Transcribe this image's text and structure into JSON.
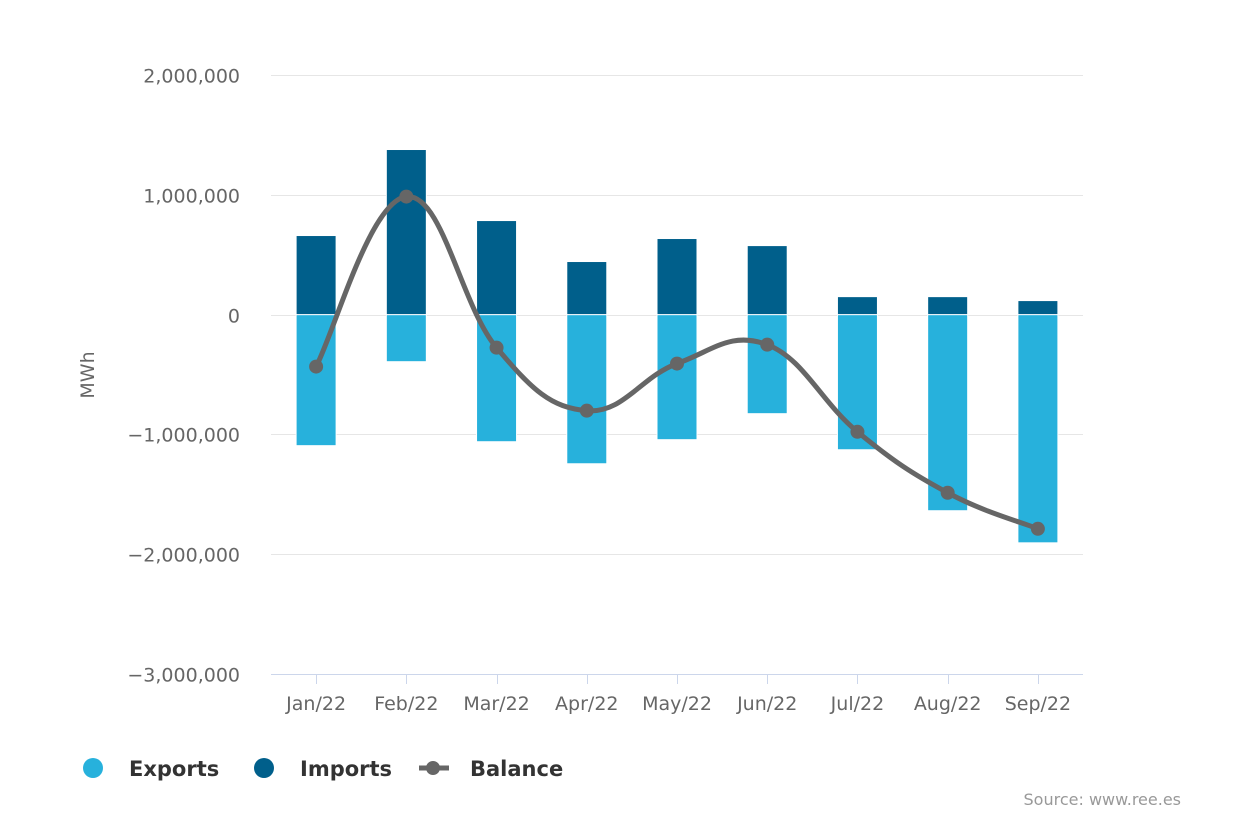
{
  "chart_data": {
    "type": "bar",
    "title": "",
    "xlabel": "",
    "ylabel": "MWh",
    "ylim": [
      -3000000,
      2000000
    ],
    "yticks": [
      2000000,
      1000000,
      0,
      -1000000,
      -2000000,
      -3000000
    ],
    "ytick_labels": [
      "2,000,000",
      "1,000,000",
      "0",
      "−1,000,000",
      "−2,000,000",
      "−3,000,000"
    ],
    "grid": true,
    "categories": [
      "Jan/22",
      "Feb/22",
      "Mar/22",
      "Apr/22",
      "May/22",
      "Jun/22",
      "Jul/22",
      "Aug/22",
      "Sep/22"
    ],
    "series": [
      {
        "name": "Exports",
        "type": "bar",
        "color": "#27b1dc",
        "values": [
          -1094000,
          -393000,
          -1061000,
          -1245000,
          -1044000,
          -827000,
          -1128000,
          -1637000,
          -1905000
        ]
      },
      {
        "name": "Imports",
        "type": "bar",
        "color": "#005f8b",
        "values": [
          660000,
          1378000,
          785000,
          443000,
          635000,
          576000,
          150000,
          150000,
          117000
        ]
      },
      {
        "name": "Balance",
        "type": "line",
        "color": "#666666",
        "values": [
          -434000,
          985000,
          -276000,
          -802000,
          -409000,
          -251000,
          -978000,
          -1487000,
          -1788000
        ]
      }
    ],
    "legend_position": "bottom-left",
    "source": "Source: www.ree.es"
  }
}
